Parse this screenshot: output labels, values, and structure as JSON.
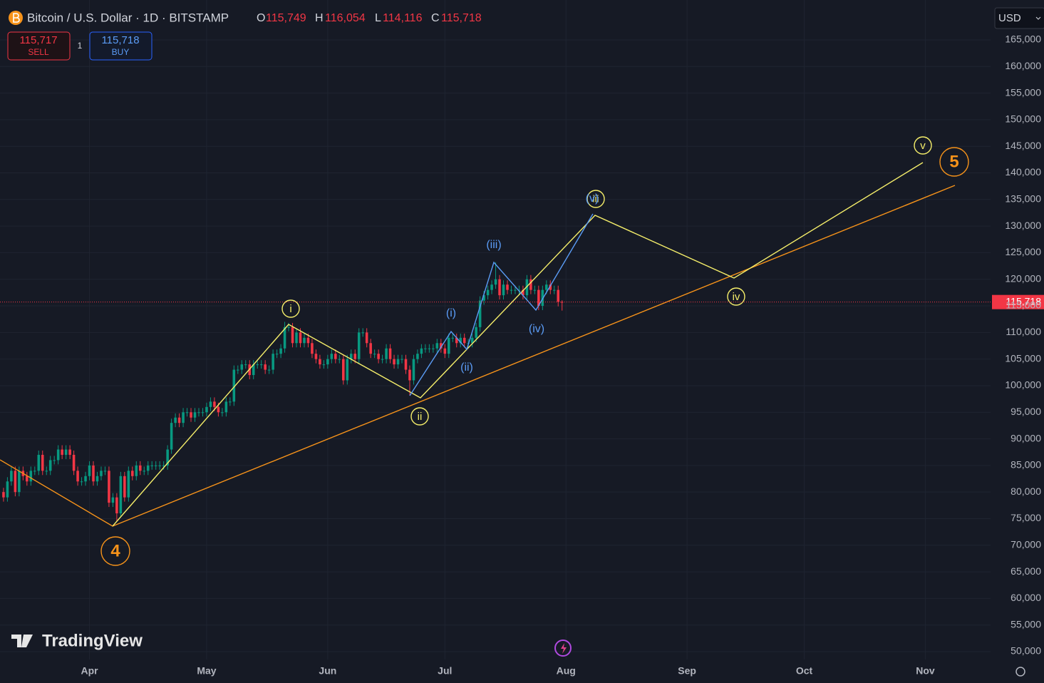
{
  "header": {
    "symbol": "Bitcoin / U.S. Dollar · 1D · BITSTAMP",
    "ohlc": [
      {
        "label": "O",
        "value": "115,749"
      },
      {
        "label": "H",
        "value": "116,054"
      },
      {
        "label": "L",
        "value": "114,116"
      },
      {
        "label": "C",
        "value": "115,718"
      }
    ],
    "currency": "USD"
  },
  "trade": {
    "sell_price": "115,717",
    "sell": "SELL",
    "quantity": "1",
    "buy_price": "115,718",
    "buy": "BUY"
  },
  "branding": "TradingView",
  "annotations": {
    "labels": [
      "4",
      "5",
      "i",
      "ii",
      "iii",
      "iv",
      "v",
      "(i)",
      "(ii)",
      "(iii)",
      "(iv)",
      "(v)"
    ]
  },
  "chart_data": {
    "type": "candlestick",
    "ylim": [
      48530,
      172500
    ],
    "xlim": [
      -0.9,
      252.7
    ],
    "yticks": [
      {
        "value": 50000,
        "label": "50,000"
      },
      {
        "value": 55000,
        "label": "55,000"
      },
      {
        "value": 60000,
        "label": "60,000"
      },
      {
        "value": 65000,
        "label": "65,000"
      },
      {
        "value": 70000,
        "label": "70,000"
      },
      {
        "value": 75000,
        "label": "75,000"
      },
      {
        "value": 80000,
        "label": "80,000"
      },
      {
        "value": 85000,
        "label": "85,000"
      },
      {
        "value": 90000,
        "label": "90,000"
      },
      {
        "value": 95000,
        "label": "95,000"
      },
      {
        "value": 100000,
        "label": "100,000"
      },
      {
        "value": 105000,
        "label": "105,000"
      },
      {
        "value": 110000,
        "label": "110,000"
      },
      {
        "value": 115000,
        "label": "115,000"
      },
      {
        "value": 120000,
        "label": "120,000"
      },
      {
        "value": 125000,
        "label": "125,000"
      },
      {
        "value": 130000,
        "label": "130,000"
      },
      {
        "value": 135000,
        "label": "135,000"
      },
      {
        "value": 140000,
        "label": "140,000"
      },
      {
        "value": 145000,
        "label": "145,000"
      },
      {
        "value": 150000,
        "label": "150,000"
      },
      {
        "value": 155000,
        "label": "155,000"
      },
      {
        "value": 160000,
        "label": "160,000"
      },
      {
        "value": 165000,
        "label": "165,000"
      }
    ],
    "xticks": [
      {
        "value": 22,
        "label": "Apr"
      },
      {
        "value": 52,
        "label": "May"
      },
      {
        "value": 83,
        "label": "Jun"
      },
      {
        "value": 113,
        "label": "Jul"
      },
      {
        "value": 144,
        "label": "Aug"
      },
      {
        "value": 175,
        "label": "Sep"
      },
      {
        "value": 205,
        "label": "Oct"
      },
      {
        "value": 236,
        "label": "Nov"
      }
    ],
    "grid": true,
    "up_color": "#089981",
    "down_color": "#f23645",
    "price_line": {
      "value": 115718,
      "label": "115,718",
      "color": "#f23645"
    },
    "open": [
      80000,
      79000,
      82000,
      84000,
      80000,
      84000,
      83000,
      82000,
      84000,
      84000,
      87000,
      84000,
      84000,
      86000,
      86000,
      88000,
      87000,
      88000,
      87000,
      84000,
      82000,
      82000,
      83000,
      85000,
      82000,
      83000,
      84000,
      84000,
      78000,
      79000,
      76000,
      83000,
      79000,
      84000,
      83000,
      85000,
      84000,
      84000,
      85000,
      85000,
      85000,
      85000,
      85000,
      88000,
      93000,
      94000,
      93000,
      95000,
      95000,
      94000,
      95000,
      95000,
      95000,
      96000,
      97000,
      96000,
      95000,
      95000,
      97000,
      97000,
      103000,
      103000,
      104000,
      104000,
      102000,
      104000,
      104000,
      104000,
      103000,
      103000,
      106000,
      106000,
      107000,
      111000,
      111000,
      108000,
      110000,
      108000,
      109000,
      108000,
      106000,
      105000,
      104000,
      104000,
      105000,
      106000,
      105000,
      105000,
      101000,
      105000,
      106000,
      105000,
      110000,
      110000,
      108000,
      106000,
      106000,
      105000,
      105000,
      107000,
      105000,
      104000,
      105000,
      105000,
      103000,
      101000,
      105000,
      106000,
      107000,
      107000,
      107000,
      107000,
      108000,
      107000,
      106000,
      109000,
      109000,
      108000,
      109000,
      108000,
      108000,
      109000,
      111000,
      116000,
      117000,
      118000,
      119000,
      120000,
      117000,
      119000,
      118000,
      118000,
      118000,
      118000,
      117000,
      120000,
      118000,
      118000,
      115000,
      118000,
      119000,
      118000,
      118000,
      115749
    ],
    "high": [
      80800,
      82800,
      84800,
      84800,
      84800,
      84800,
      83800,
      84800,
      84800,
      87800,
      87800,
      84800,
      86800,
      86800,
      88800,
      88800,
      88800,
      88800,
      87800,
      84800,
      82800,
      83800,
      85800,
      85800,
      83800,
      84800,
      84800,
      84800,
      79800,
      79800,
      83800,
      83800,
      84800,
      84800,
      85800,
      85800,
      84800,
      85800,
      85800,
      85800,
      85800,
      85800,
      88800,
      93800,
      94800,
      94800,
      95800,
      95800,
      95800,
      95800,
      95800,
      95800,
      96800,
      97800,
      97800,
      96800,
      95800,
      97800,
      97800,
      103800,
      103800,
      104800,
      104800,
      104800,
      104800,
      104800,
      104800,
      104800,
      103800,
      106800,
      106800,
      107800,
      112000,
      111800,
      111800,
      110800,
      110800,
      109800,
      109800,
      108800,
      106800,
      105800,
      104800,
      105800,
      106800,
      106800,
      105800,
      105800,
      105800,
      106800,
      106800,
      110800,
      110800,
      110800,
      108800,
      106800,
      106800,
      105800,
      107800,
      107800,
      105800,
      105800,
      105800,
      105800,
      103800,
      105800,
      106800,
      107800,
      107800,
      107800,
      107800,
      108800,
      108800,
      107800,
      109800,
      109800,
      109800,
      109800,
      109800,
      108800,
      109800,
      111800,
      116800,
      117800,
      118800,
      119800,
      123200,
      120800,
      119800,
      119800,
      118800,
      118800,
      118800,
      118800,
      120800,
      120800,
      118800,
      118800,
      118800,
      119800,
      119800,
      118800,
      118800,
      116054
    ],
    "low": [
      78200,
      78200,
      81200,
      79200,
      79200,
      82200,
      81200,
      81200,
      83200,
      83200,
      83200,
      83200,
      83200,
      85200,
      85200,
      86200,
      86200,
      86200,
      83200,
      81200,
      81200,
      81200,
      82200,
      81200,
      81200,
      82200,
      83200,
      77200,
      77200,
      74500,
      75200,
      78200,
      78200,
      82200,
      82200,
      83200,
      83200,
      83200,
      84200,
      84200,
      84200,
      84200,
      84200,
      87200,
      92200,
      92200,
      92200,
      94200,
      93200,
      93200,
      94200,
      94200,
      94200,
      95200,
      95200,
      94200,
      94200,
      94200,
      96200,
      96200,
      102200,
      102200,
      103200,
      101200,
      101200,
      103200,
      103200,
      102200,
      102200,
      102200,
      105200,
      105200,
      106200,
      110200,
      107200,
      107200,
      107200,
      107200,
      107200,
      105200,
      104200,
      103200,
      103200,
      103200,
      104200,
      104200,
      104200,
      100200,
      100200,
      104200,
      104200,
      104200,
      109200,
      107200,
      105200,
      105200,
      104200,
      104200,
      104200,
      104200,
      103200,
      103200,
      104200,
      102200,
      98200,
      100200,
      104200,
      105200,
      106200,
      106200,
      106200,
      106200,
      106200,
      105200,
      105200,
      108200,
      107200,
      107200,
      107200,
      107200,
      107200,
      108200,
      110200,
      115200,
      116200,
      117200,
      118200,
      116200,
      116200,
      117200,
      117200,
      117200,
      117200,
      116200,
      116200,
      117200,
      117200,
      114200,
      114200,
      117200,
      117200,
      117200,
      114900,
      114116
    ],
    "close": [
      79000,
      82000,
      84000,
      80000,
      84000,
      83000,
      82000,
      84000,
      84000,
      87000,
      84000,
      84000,
      86000,
      86000,
      88000,
      87000,
      88000,
      87000,
      84000,
      82000,
      82000,
      83000,
      85000,
      82000,
      83000,
      84000,
      84000,
      78000,
      79000,
      76000,
      83000,
      79000,
      84000,
      83000,
      85000,
      84000,
      84000,
      85000,
      85000,
      85000,
      85000,
      85000,
      88000,
      93000,
      94000,
      93000,
      95000,
      95000,
      94000,
      95000,
      95000,
      95000,
      96000,
      97000,
      96000,
      95000,
      95000,
      97000,
      97000,
      103000,
      103000,
      104000,
      104000,
      102000,
      104000,
      104000,
      104000,
      103000,
      103000,
      106000,
      106000,
      107000,
      111000,
      111000,
      108000,
      110000,
      108000,
      109000,
      108000,
      106000,
      105000,
      104000,
      104000,
      105000,
      106000,
      105000,
      105000,
      101000,
      105000,
      106000,
      105000,
      110000,
      110000,
      108000,
      106000,
      106000,
      105000,
      105000,
      107000,
      105000,
      104000,
      105000,
      105000,
      103000,
      101000,
      105000,
      106000,
      107000,
      107000,
      107000,
      107000,
      108000,
      107000,
      106000,
      109000,
      109000,
      108000,
      109000,
      108000,
      108000,
      109000,
      111000,
      116000,
      117000,
      118000,
      119000,
      120000,
      117000,
      119000,
      118000,
      118000,
      118000,
      118000,
      117000,
      120000,
      118000,
      118000,
      115000,
      118000,
      119000,
      118000,
      118000,
      115749,
      115718
    ]
  }
}
